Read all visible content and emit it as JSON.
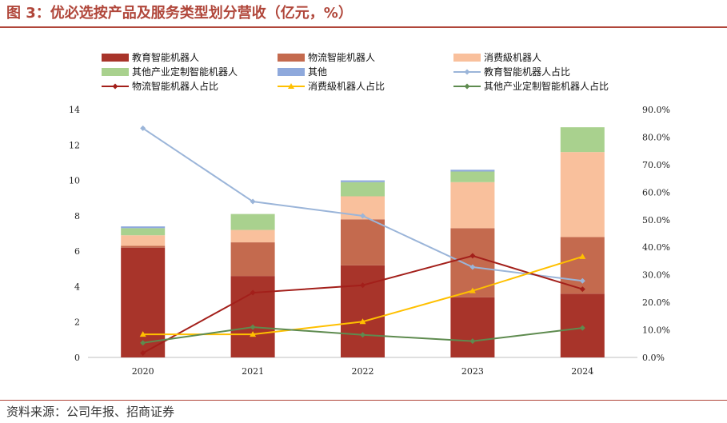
{
  "title": "图 3：优必选按产品及服务类型划分营收（亿元，%）",
  "source": "资料来源：公司年报、招商证券",
  "chart_data": {
    "type": "bar",
    "stacked": true,
    "categories": [
      "2020",
      "2021",
      "2022",
      "2023",
      "2024"
    ],
    "y_left": {
      "min": 0,
      "max": 14,
      "ticks": [
        0,
        2,
        4,
        6,
        8,
        10,
        12,
        14
      ],
      "tick_labels": [
        "0",
        "2",
        "4",
        "6",
        "8",
        "10",
        "12",
        "14"
      ]
    },
    "y_right": {
      "min": 0,
      "max": 90,
      "ticks": [
        0,
        10,
        20,
        30,
        40,
        50,
        60,
        70,
        80,
        90
      ],
      "tick_labels": [
        "0.0%",
        "10.0%",
        "20.0%",
        "30.0%",
        "40.0%",
        "50.0%",
        "60.0%",
        "70.0%",
        "80.0%",
        "90.0%"
      ]
    },
    "bar_series": [
      {
        "name": "教育智能机器人",
        "color": "#a8342a",
        "values": [
          6.2,
          4.6,
          5.2,
          3.4,
          3.6
        ]
      },
      {
        "name": "物流智能机器人",
        "color": "#c46a4e",
        "values": [
          0.1,
          1.9,
          2.6,
          3.9,
          3.2
        ]
      },
      {
        "name": "消费級机器人",
        "color": "#f9c09c",
        "values": [
          0.6,
          0.7,
          1.3,
          2.6,
          4.8
        ]
      },
      {
        "name": "其他产业定制智能机器人",
        "color": "#a9d18e",
        "values": [
          0.4,
          0.9,
          0.8,
          0.6,
          1.4
        ]
      },
      {
        "name": "其他",
        "color": "#8fa9dc",
        "values": [
          0.1,
          0.0,
          0.1,
          0.1,
          0.0
        ]
      }
    ],
    "line_series": [
      {
        "name": "教育智能机器人占比",
        "color": "#9bb5d9",
        "marker": "diamond",
        "values": [
          83.2,
          56.6,
          51.4,
          32.8,
          27.8
        ]
      },
      {
        "name": "物流智能机器人占比",
        "color": "#a31f1a",
        "marker": "diamond",
        "values": [
          1.6,
          23.5,
          26.2,
          36.9,
          24.8
        ]
      },
      {
        "name": "消费級机器人占比",
        "color": "#ffc000",
        "marker": "triangle",
        "values": [
          8.4,
          8.4,
          13.0,
          24.2,
          36.6
        ]
      },
      {
        "name": "其他产业定制智能机器人占比",
        "color": "#5e8b4f",
        "marker": "diamond",
        "values": [
          5.3,
          11.0,
          8.2,
          5.9,
          10.7
        ]
      }
    ],
    "legend_order": [
      "教育智能机器人",
      "物流智能机器人",
      "消费級机器人",
      "其他产业定制智能机器人",
      "其他",
      "教育智能机器人占比",
      "物流智能机器人占比",
      "消费級机器人占比",
      "其他产业定制智能机器人占比"
    ]
  }
}
